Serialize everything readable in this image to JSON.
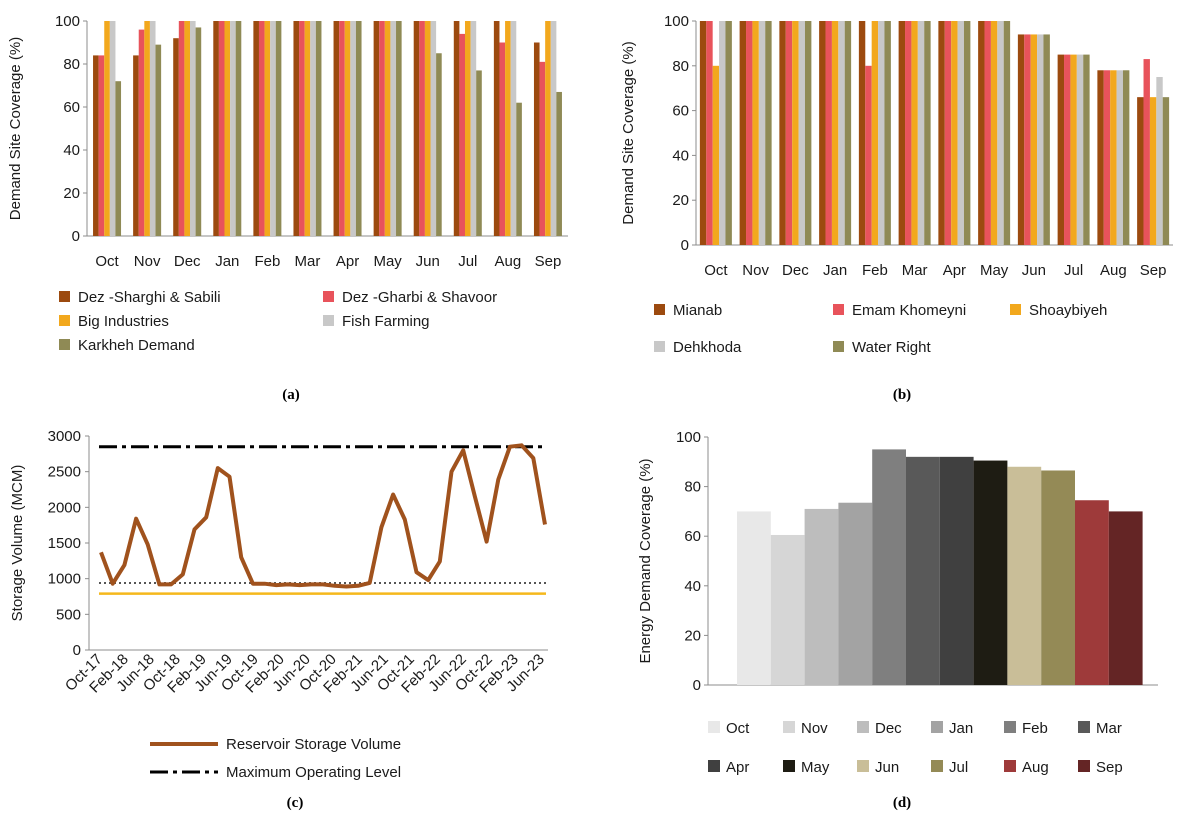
{
  "panel_labels": [
    "(a)",
    "(b)",
    "(c)",
    "(d)"
  ],
  "chart_data": [
    {
      "panel": "(a)",
      "type": "bar",
      "categories": [
        "Oct",
        "Nov",
        "Dec",
        "Jan",
        "Feb",
        "Mar",
        "Apr",
        "May",
        "Jun",
        "Jul",
        "Aug",
        "Sep"
      ],
      "ylabel": "Demand Site Coverage (%)",
      "ylim": [
        0,
        100
      ],
      "yticks": [
        0,
        20,
        40,
        60,
        80,
        100
      ],
      "grid": false,
      "legend_position": "bottom",
      "series": [
        {
          "name": "Dez -Sharghi & Sabili",
          "color": "#9C4A0F",
          "values": [
            84,
            84,
            92,
            100,
            100,
            100,
            100,
            100,
            100,
            100,
            100,
            90
          ]
        },
        {
          "name": "Dez -Gharbi & Shavoor",
          "color": "#E8535B",
          "values": [
            84,
            96,
            100,
            100,
            100,
            100,
            100,
            100,
            100,
            94,
            90,
            81
          ]
        },
        {
          "name": "Big Industries",
          "color": "#F2A81D",
          "values": [
            100,
            100,
            100,
            100,
            100,
            100,
            100,
            100,
            100,
            100,
            100,
            100
          ]
        },
        {
          "name": "Fish Farming",
          "color": "#C8C8C8",
          "values": [
            100,
            100,
            100,
            100,
            100,
            100,
            100,
            100,
            100,
            100,
            100,
            100
          ]
        },
        {
          "name": "Karkheh Demand",
          "color": "#8F8A55",
          "values": [
            72,
            89,
            97,
            100,
            100,
            100,
            100,
            100,
            85,
            77,
            62,
            67
          ]
        }
      ]
    },
    {
      "panel": "(b)",
      "type": "bar",
      "categories": [
        "Oct",
        "Nov",
        "Dec",
        "Jan",
        "Feb",
        "Mar",
        "Apr",
        "May",
        "Jun",
        "Jul",
        "Aug",
        "Sep"
      ],
      "ylabel": "Demand Site Coverage (%)",
      "ylim": [
        0,
        100
      ],
      "yticks": [
        0,
        20,
        40,
        60,
        80,
        100
      ],
      "grid": false,
      "legend_position": "bottom",
      "series": [
        {
          "name": "Mianab",
          "color": "#9C4A0F",
          "values": [
            100,
            100,
            100,
            100,
            100,
            100,
            100,
            100,
            94,
            85,
            78,
            66
          ]
        },
        {
          "name": "Emam Khomeyni",
          "color": "#E8535B",
          "values": [
            100,
            100,
            100,
            100,
            80,
            100,
            100,
            100,
            94,
            85,
            78,
            83
          ]
        },
        {
          "name": "Shoaybiyeh",
          "color": "#F2A81D",
          "values": [
            80,
            100,
            100,
            100,
            100,
            100,
            100,
            100,
            94,
            85,
            78,
            66
          ]
        },
        {
          "name": "Dehkhoda",
          "color": "#C8C8C8",
          "values": [
            100,
            100,
            100,
            100,
            100,
            100,
            100,
            100,
            94,
            85,
            78,
            75
          ]
        },
        {
          "name": "Water Right",
          "color": "#8F8A55",
          "values": [
            100,
            100,
            100,
            100,
            100,
            100,
            100,
            100,
            94,
            85,
            78,
            66
          ]
        }
      ]
    },
    {
      "panel": "(c)",
      "type": "line",
      "ylabel": "Storage Volume (MCM)",
      "ylim": [
        0,
        3000
      ],
      "yticks": [
        0,
        500,
        1000,
        1500,
        2000,
        2500,
        3000
      ],
      "grid": false,
      "legend_position": "bottom",
      "x_tick_labels": [
        "Oct-17",
        "Feb-18",
        "Jun-18",
        "Oct-18",
        "Feb-19",
        "Jun-19",
        "Oct-19",
        "Feb-20",
        "Jun-20",
        "Oct-20",
        "Feb-21",
        "Jun-21",
        "Oct-21",
        "Feb-22",
        "Jun-22",
        "Oct-22",
        "Feb-23",
        "Jun-23"
      ],
      "series": [
        {
          "name": "Reservoir Storage Volume",
          "color": "#A0521D",
          "style": "solid",
          "values": [
            1370,
            930,
            1190,
            1840,
            1480,
            920,
            920,
            1060,
            1690,
            1860,
            2550,
            2430,
            1300,
            930,
            930,
            910,
            920,
            910,
            920,
            920,
            900,
            890,
            900,
            940,
            1720,
            2180,
            1830,
            1090,
            980,
            1240,
            2500,
            2800,
            2150,
            1520,
            2390,
            2850,
            2870,
            2690,
            1760
          ]
        },
        {
          "name": "Maximum Operating Level",
          "color": "#000000",
          "style": "dash-dot",
          "values": [
            2850
          ]
        },
        {
          "name": "",
          "color": "#555555",
          "style": "dotted",
          "values": [
            940
          ]
        },
        {
          "name": "",
          "color": "#F5B81C",
          "style": "solid",
          "values": [
            790
          ]
        }
      ]
    },
    {
      "panel": "(d)",
      "type": "bar",
      "categories": [
        "Oct",
        "Nov",
        "Dec",
        "Jan",
        "Feb",
        "Mar",
        "Apr",
        "May",
        "Jun",
        "Jul",
        "Aug",
        "Sep"
      ],
      "ylabel": "Energy Demand Coverage (%)",
      "ylim": [
        0,
        100
      ],
      "yticks": [
        0,
        20,
        40,
        60,
        80,
        100
      ],
      "grid": false,
      "legend_position": "bottom",
      "values": [
        70,
        60.5,
        71,
        73.5,
        95,
        92,
        92,
        90.5,
        88,
        86.5,
        74.5,
        70
      ],
      "colors": [
        "#E8E8E8",
        "#D6D6D6",
        "#BDBDBD",
        "#A3A3A3",
        "#7F7F7F",
        "#595959",
        "#404040",
        "#1E1C13",
        "#C9BE98",
        "#948A56",
        "#9E3A3A",
        "#642525"
      ]
    }
  ]
}
